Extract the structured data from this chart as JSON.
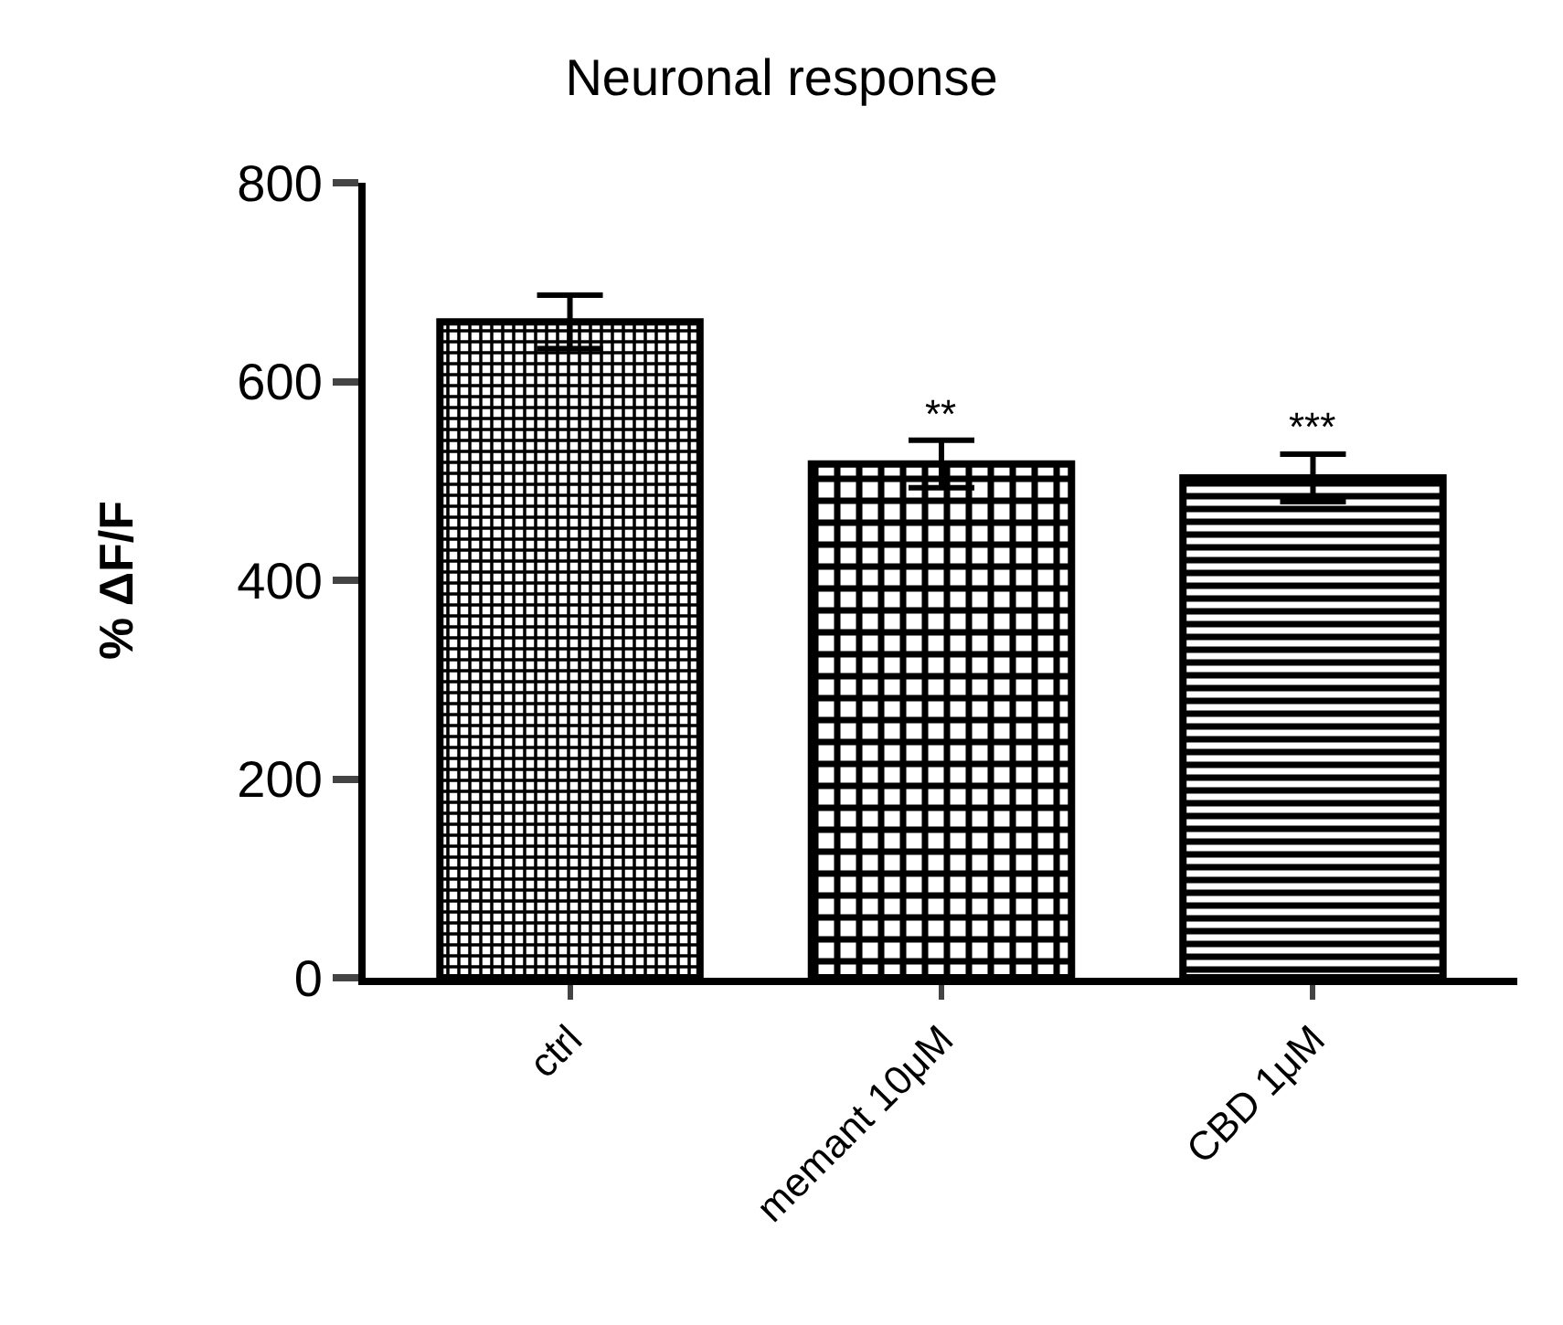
{
  "chart_data": {
    "type": "bar",
    "title": "Neuronal response",
    "ylabel": "% ΔF/F",
    "categories": [
      "ctrl",
      "memant 10μM",
      "CBD 1μM"
    ],
    "values": [
      660,
      517,
      503
    ],
    "errors": [
      27,
      24,
      24
    ],
    "color": "#000000",
    "ylim": [
      0,
      800
    ],
    "yticks": [
      0,
      200,
      400,
      600,
      800
    ],
    "grid": false,
    "annotations": [
      {
        "text": "**",
        "x": "memant 10μM",
        "y": 541
      },
      {
        "text": "***",
        "x": "CBD 1μM",
        "y": 527
      }
    ]
  }
}
